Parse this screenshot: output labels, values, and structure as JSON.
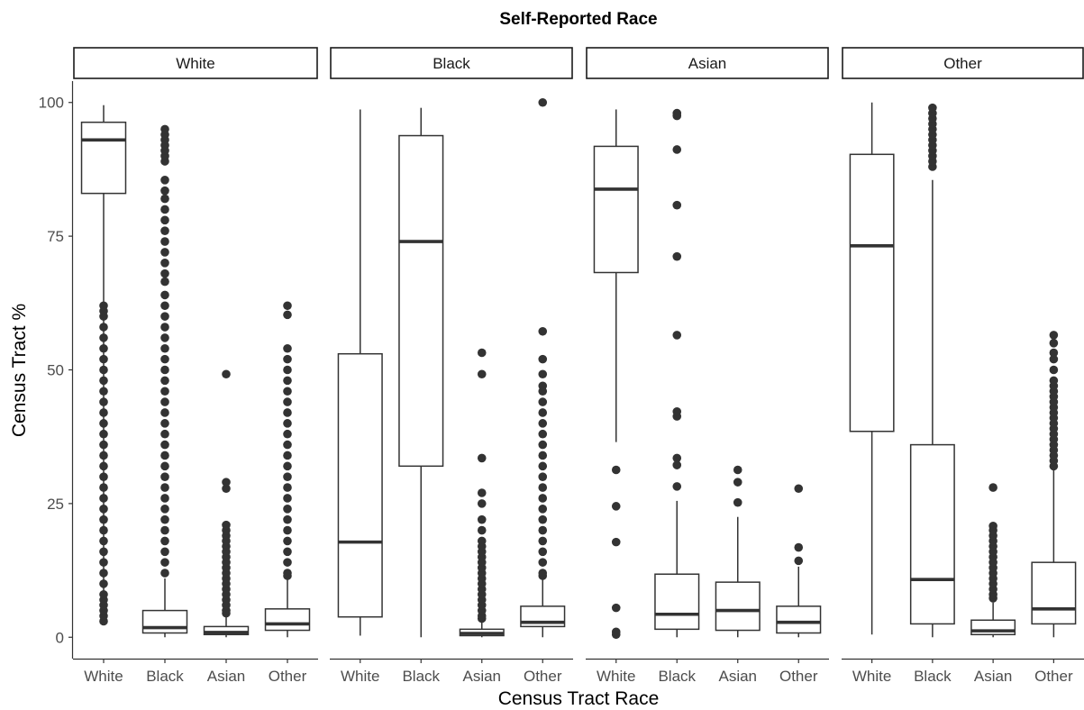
{
  "chart_data": {
    "type": "boxplot",
    "title": "Self-Reported Race",
    "xlabel": "Census Tract Race",
    "ylabel": "Census Tract %",
    "ylim": [
      -4,
      104
    ],
    "yticks": [
      0,
      25,
      50,
      75,
      100
    ],
    "grid": false,
    "categories": [
      "White",
      "Black",
      "Asian",
      "Other"
    ],
    "facets": [
      {
        "label": "White",
        "boxes": [
          {
            "category": "White",
            "lower": 3,
            "q1": 83,
            "median": 93,
            "q3": 96.3,
            "upper": 99.5,
            "outliers": [
              3,
              4,
              5,
              6,
              7,
              8,
              10,
              12,
              14,
              16,
              18,
              20,
              22,
              24,
              26,
              28,
              30,
              32,
              34,
              36,
              38,
              40,
              42,
              44,
              46,
              48,
              50,
              52,
              54,
              56,
              58,
              60,
              61,
              62
            ]
          },
          {
            "category": "Black",
            "lower": 0,
            "q1": 0.8,
            "median": 1.8,
            "q3": 5,
            "upper": 11,
            "outliers": [
              12,
              14,
              16,
              18,
              20,
              22,
              24,
              26,
              28,
              30,
              32,
              34,
              36,
              38,
              40,
              42,
              44,
              46,
              48,
              50,
              52,
              54,
              56,
              58,
              60,
              62,
              64,
              66.5,
              68,
              70,
              72,
              74,
              76,
              78,
              80,
              82,
              83.5,
              85.5,
              89,
              90,
              91,
              92,
              93,
              94,
              95
            ]
          },
          {
            "category": "Asian",
            "lower": 0,
            "q1": 0.5,
            "median": 0.9,
            "q3": 2,
            "upper": 4,
            "outliers": [
              4.5,
              5,
              6,
              7,
              8,
              9,
              10,
              11,
              12,
              13,
              14,
              15,
              16,
              17,
              18,
              19,
              20,
              21,
              27.8,
              29,
              49.2
            ]
          },
          {
            "category": "Other",
            "lower": 0,
            "q1": 1.3,
            "median": 2.5,
            "q3": 5.3,
            "upper": 11,
            "outliers": [
              11.5,
              12,
              14,
              16,
              18,
              20,
              22,
              24,
              26,
              28,
              30,
              32,
              34,
              36,
              38,
              40,
              42,
              44,
              46,
              48,
              50,
              52,
              54,
              60.3,
              62
            ]
          }
        ]
      },
      {
        "label": "Black",
        "boxes": [
          {
            "category": "White",
            "lower": 0.3,
            "q1": 3.8,
            "median": 17.8,
            "q3": 53,
            "upper": 98.7,
            "outliers": []
          },
          {
            "category": "Black",
            "lower": 0,
            "q1": 32,
            "median": 74,
            "q3": 93.8,
            "upper": 99,
            "outliers": []
          },
          {
            "category": "Asian",
            "lower": 0,
            "q1": 0.3,
            "median": 0.7,
            "q3": 1.5,
            "upper": 3,
            "outliers": [
              3.5,
              4,
              5,
              6,
              7,
              8,
              9,
              10,
              11,
              12,
              13,
              14,
              15,
              16,
              17,
              18,
              20,
              22,
              25,
              27,
              33.5,
              49.2,
              53.2
            ]
          },
          {
            "category": "Other",
            "lower": 0,
            "q1": 2,
            "median": 2.8,
            "q3": 5.8,
            "upper": 11,
            "outliers": [
              11.5,
              12,
              14,
              16,
              18,
              20,
              22,
              24,
              26,
              28,
              30,
              32,
              34,
              36,
              38,
              40,
              42,
              44,
              46,
              47,
              49.2,
              52,
              57.2,
              100
            ]
          }
        ]
      },
      {
        "label": "Asian",
        "boxes": [
          {
            "category": "White",
            "lower": 36.5,
            "q1": 68.2,
            "median": 83.8,
            "q3": 91.8,
            "upper": 98.7,
            "outliers": [
              0.5,
              1,
              5.5,
              17.8,
              24.5,
              31.3
            ]
          },
          {
            "category": "Black",
            "lower": 0,
            "q1": 1.5,
            "median": 4.3,
            "q3": 11.8,
            "upper": 25.5,
            "outliers": [
              28.2,
              32.2,
              33.5,
              41.3,
              42.2,
              56.5,
              71.2,
              80.8,
              91.2,
              97.5,
              98
            ]
          },
          {
            "category": "Asian",
            "lower": 0,
            "q1": 1.3,
            "median": 5,
            "q3": 10.3,
            "upper": 22.5,
            "outliers": [
              25.2,
              29,
              31.3
            ]
          },
          {
            "category": "Other",
            "lower": 0,
            "q1": 0.8,
            "median": 2.8,
            "q3": 5.8,
            "upper": 13.2,
            "outliers": [
              14.3,
              16.8,
              27.8
            ]
          }
        ]
      },
      {
        "label": "Other",
        "boxes": [
          {
            "category": "White",
            "lower": 0.5,
            "q1": 38.5,
            "median": 73.2,
            "q3": 90.3,
            "upper": 100,
            "outliers": []
          },
          {
            "category": "Black",
            "lower": 0,
            "q1": 2.5,
            "median": 10.8,
            "q3": 36,
            "upper": 85.5,
            "outliers": [
              88,
              89,
              90,
              91,
              92,
              93,
              94,
              95,
              96,
              97,
              98,
              99
            ]
          },
          {
            "category": "Asian",
            "lower": 0,
            "q1": 0.5,
            "median": 1.2,
            "q3": 3.2,
            "upper": 6.5,
            "outliers": [
              7.3,
              8,
              9,
              10,
              11,
              12,
              13,
              14,
              15,
              16,
              17,
              18,
              19,
              20,
              20.8,
              28
            ]
          },
          {
            "category": "Other",
            "lower": 0,
            "q1": 2.5,
            "median": 5.3,
            "q3": 14,
            "upper": 31.5,
            "outliers": [
              32,
              33,
              34,
              35,
              36,
              37,
              38,
              39,
              40,
              41,
              42,
              43,
              44,
              45,
              46,
              47,
              48,
              50,
              52,
              53.2,
              55,
              56.5
            ]
          }
        ]
      }
    ]
  }
}
